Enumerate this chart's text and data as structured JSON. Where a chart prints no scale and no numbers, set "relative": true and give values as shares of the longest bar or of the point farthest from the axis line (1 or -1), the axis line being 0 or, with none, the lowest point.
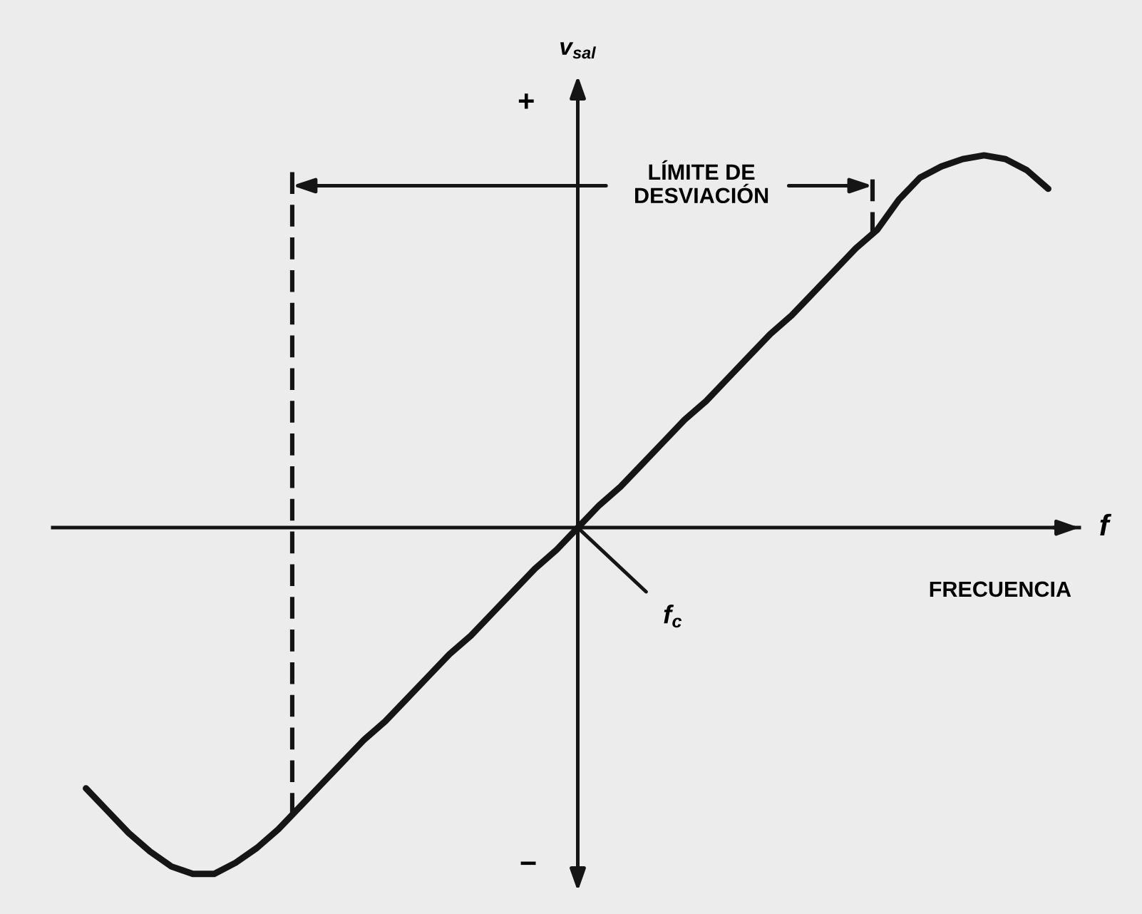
{
  "chart_data": {
    "type": "line",
    "relative": true,
    "categories": [
      null,
      null,
      null,
      null,
      null,
      null,
      null,
      null,
      null,
      null,
      null,
      null,
      null,
      null,
      null,
      null,
      null,
      null,
      null,
      null,
      null,
      null,
      null,
      null,
      null,
      null,
      null,
      null,
      null,
      null,
      null,
      null,
      null,
      null,
      null,
      null,
      null,
      null,
      null,
      null,
      null,
      null,
      null,
      null,
      null,
      null
    ],
    "series": [
      {
        "color": "#151515",
        "values": [
          -0.7,
          -0.76,
          -0.82,
          -0.87,
          -0.91,
          -0.93,
          -0.93,
          -0.9,
          -0.86,
          -0.81,
          -0.75,
          -0.69,
          -0.63,
          -0.57,
          -0.52,
          -0.46,
          -0.4,
          -0.34,
          -0.29,
          -0.23,
          -0.17,
          -0.11,
          -0.06,
          0,
          0.06,
          0.11,
          0.17,
          0.23,
          0.29,
          0.34,
          0.4,
          0.46,
          0.52,
          0.57,
          0.63,
          0.69,
          0.75,
          0.8,
          0.88,
          0.94,
          0.97,
          0.99,
          1,
          0.99,
          0.96,
          0.91
        ]
      }
    ],
    "xlabel": "f",
    "ylabel": "v$_{sal}$",
    "annotations": [
      "+",
      "−",
      "FRECUENCIA",
      "f$_{c}$",
      "LÍMITE DE\nDESVIACIÓN"
    ],
    "line_style": "solid"
  }
}
